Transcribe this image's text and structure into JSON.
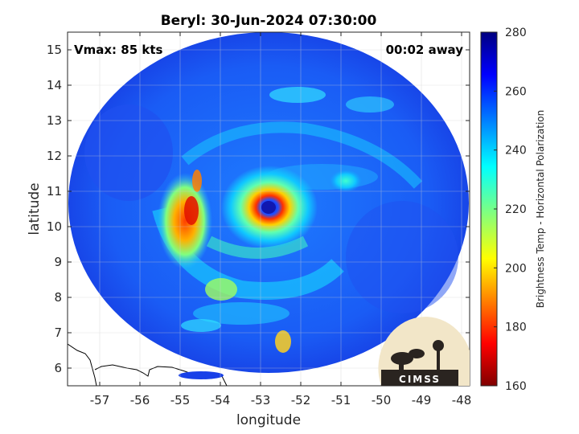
{
  "chart_data": {
    "type": "heatmap",
    "title": "Beryl: 30-Jun-2024 07:30:00",
    "xlabel": "longitude",
    "ylabel": "latitude",
    "xlim": [
      -57.8,
      -47.8
    ],
    "ylim": [
      5.5,
      15.5
    ],
    "x_ticks": [
      -57,
      -56,
      -55,
      -54,
      -53,
      -52,
      -51,
      -50,
      -49,
      -48
    ],
    "y_ticks": [
      6,
      7,
      8,
      9,
      10,
      11,
      12,
      13,
      14,
      15
    ],
    "annotations": {
      "vmax": "Vmax: 85 kts",
      "time_away": "00:02 away"
    },
    "storm_center": {
      "lon": -52.8,
      "lat": 10.5
    },
    "colorbar": {
      "label": "Brightness Temp - Horizontal Polarization",
      "range": [
        160,
        280
      ],
      "ticks": [
        160,
        180,
        200,
        220,
        240,
        260,
        280
      ],
      "colormap": "jet"
    },
    "logo_text": "CIMSS",
    "grid": true
  }
}
